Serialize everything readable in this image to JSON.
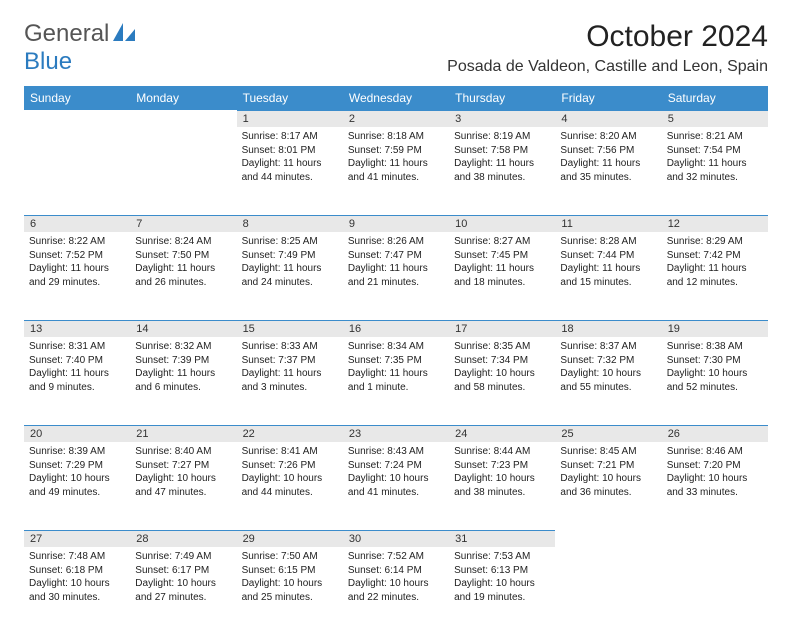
{
  "logo": {
    "text1": "General",
    "text2": "Blue"
  },
  "title": "October 2024",
  "location": "Posada de Valdeon, Castille and Leon, Spain",
  "colors": {
    "header_bg": "#3b8ccb",
    "daynum_bg": "#e8e8e8",
    "border_top": "#3b8ccb"
  },
  "weekdays": [
    "Sunday",
    "Monday",
    "Tuesday",
    "Wednesday",
    "Thursday",
    "Friday",
    "Saturday"
  ],
  "weeks": [
    [
      null,
      null,
      {
        "n": "1",
        "sr": "8:17 AM",
        "ss": "8:01 PM",
        "dl": "11 hours and 44 minutes."
      },
      {
        "n": "2",
        "sr": "8:18 AM",
        "ss": "7:59 PM",
        "dl": "11 hours and 41 minutes."
      },
      {
        "n": "3",
        "sr": "8:19 AM",
        "ss": "7:58 PM",
        "dl": "11 hours and 38 minutes."
      },
      {
        "n": "4",
        "sr": "8:20 AM",
        "ss": "7:56 PM",
        "dl": "11 hours and 35 minutes."
      },
      {
        "n": "5",
        "sr": "8:21 AM",
        "ss": "7:54 PM",
        "dl": "11 hours and 32 minutes."
      }
    ],
    [
      {
        "n": "6",
        "sr": "8:22 AM",
        "ss": "7:52 PM",
        "dl": "11 hours and 29 minutes."
      },
      {
        "n": "7",
        "sr": "8:24 AM",
        "ss": "7:50 PM",
        "dl": "11 hours and 26 minutes."
      },
      {
        "n": "8",
        "sr": "8:25 AM",
        "ss": "7:49 PM",
        "dl": "11 hours and 24 minutes."
      },
      {
        "n": "9",
        "sr": "8:26 AM",
        "ss": "7:47 PM",
        "dl": "11 hours and 21 minutes."
      },
      {
        "n": "10",
        "sr": "8:27 AM",
        "ss": "7:45 PM",
        "dl": "11 hours and 18 minutes."
      },
      {
        "n": "11",
        "sr": "8:28 AM",
        "ss": "7:44 PM",
        "dl": "11 hours and 15 minutes."
      },
      {
        "n": "12",
        "sr": "8:29 AM",
        "ss": "7:42 PM",
        "dl": "11 hours and 12 minutes."
      }
    ],
    [
      {
        "n": "13",
        "sr": "8:31 AM",
        "ss": "7:40 PM",
        "dl": "11 hours and 9 minutes."
      },
      {
        "n": "14",
        "sr": "8:32 AM",
        "ss": "7:39 PM",
        "dl": "11 hours and 6 minutes."
      },
      {
        "n": "15",
        "sr": "8:33 AM",
        "ss": "7:37 PM",
        "dl": "11 hours and 3 minutes."
      },
      {
        "n": "16",
        "sr": "8:34 AM",
        "ss": "7:35 PM",
        "dl": "11 hours and 1 minute."
      },
      {
        "n": "17",
        "sr": "8:35 AM",
        "ss": "7:34 PM",
        "dl": "10 hours and 58 minutes."
      },
      {
        "n": "18",
        "sr": "8:37 AM",
        "ss": "7:32 PM",
        "dl": "10 hours and 55 minutes."
      },
      {
        "n": "19",
        "sr": "8:38 AM",
        "ss": "7:30 PM",
        "dl": "10 hours and 52 minutes."
      }
    ],
    [
      {
        "n": "20",
        "sr": "8:39 AM",
        "ss": "7:29 PM",
        "dl": "10 hours and 49 minutes."
      },
      {
        "n": "21",
        "sr": "8:40 AM",
        "ss": "7:27 PM",
        "dl": "10 hours and 47 minutes."
      },
      {
        "n": "22",
        "sr": "8:41 AM",
        "ss": "7:26 PM",
        "dl": "10 hours and 44 minutes."
      },
      {
        "n": "23",
        "sr": "8:43 AM",
        "ss": "7:24 PM",
        "dl": "10 hours and 41 minutes."
      },
      {
        "n": "24",
        "sr": "8:44 AM",
        "ss": "7:23 PM",
        "dl": "10 hours and 38 minutes."
      },
      {
        "n": "25",
        "sr": "8:45 AM",
        "ss": "7:21 PM",
        "dl": "10 hours and 36 minutes."
      },
      {
        "n": "26",
        "sr": "8:46 AM",
        "ss": "7:20 PM",
        "dl": "10 hours and 33 minutes."
      }
    ],
    [
      {
        "n": "27",
        "sr": "7:48 AM",
        "ss": "6:18 PM",
        "dl": "10 hours and 30 minutes."
      },
      {
        "n": "28",
        "sr": "7:49 AM",
        "ss": "6:17 PM",
        "dl": "10 hours and 27 minutes."
      },
      {
        "n": "29",
        "sr": "7:50 AM",
        "ss": "6:15 PM",
        "dl": "10 hours and 25 minutes."
      },
      {
        "n": "30",
        "sr": "7:52 AM",
        "ss": "6:14 PM",
        "dl": "10 hours and 22 minutes."
      },
      {
        "n": "31",
        "sr": "7:53 AM",
        "ss": "6:13 PM",
        "dl": "10 hours and 19 minutes."
      },
      null,
      null
    ]
  ],
  "labels": {
    "sunrise": "Sunrise:",
    "sunset": "Sunset:",
    "daylight": "Daylight:"
  }
}
